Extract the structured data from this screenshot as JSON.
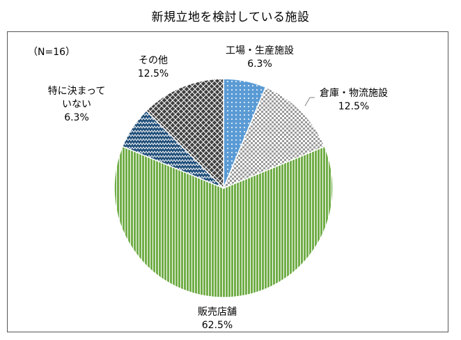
{
  "title": "新規立地を検討している施設",
  "n_label": "（N=16）",
  "chart_data": {
    "type": "pie",
    "start": "12 o'clock",
    "direction": "clockwise",
    "slices": [
      {
        "name": "工場・生産施設",
        "value": 6.3,
        "label": "6.3%",
        "color": "#5b9bd5",
        "pattern": "dots"
      },
      {
        "name": "倉庫・物流施設",
        "value": 12.5,
        "label": "12.5%",
        "color": "#a6a6a6",
        "pattern": "checker"
      },
      {
        "name": "販売店舗",
        "value": 62.5,
        "label": "62.5%",
        "color": "#70ad47",
        "pattern": "vertical-stripes"
      },
      {
        "name": "特に決まっていない",
        "name_lines": [
          "特に決まって",
          "いない"
        ],
        "value": 6.3,
        "label": "6.3%",
        "color": "#1f4e79",
        "pattern": "zigzag"
      },
      {
        "name": "その他",
        "value": 12.5,
        "label": "12.5%",
        "color": "#404040",
        "pattern": "diamond-grid"
      }
    ]
  }
}
